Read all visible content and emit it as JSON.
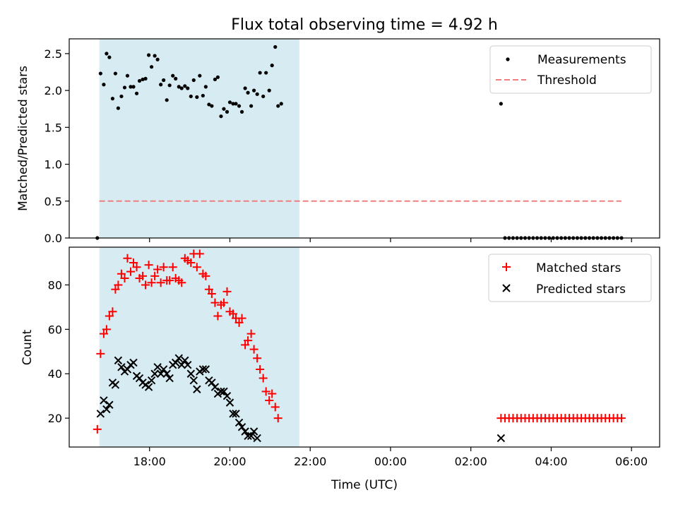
{
  "chart_data": [
    {
      "type": "scatter",
      "title": "Flux total observing time = 4.92 h",
      "xlabel": "",
      "ylabel": "Matched/Predicted stars",
      "xlim": [
        16.0,
        30.7
      ],
      "ylim": [
        0,
        2.7
      ],
      "x_ticks": [
        18,
        20,
        22,
        24,
        26,
        28,
        30
      ],
      "y_ticks": [
        {
          "v": 0.0,
          "label": "0.0"
        },
        {
          "v": 0.5,
          "label": "0.5"
        },
        {
          "v": 1.0,
          "label": "1.0"
        },
        {
          "v": 1.5,
          "label": "1.5"
        },
        {
          "v": 2.0,
          "label": "2.0"
        },
        {
          "v": 2.5,
          "label": "2.5"
        }
      ],
      "shaded_span": [
        16.75,
        21.73
      ],
      "legend_position": "top-right",
      "threshold": {
        "name": "Threshold",
        "value": 0.5,
        "x_range": [
          16.75,
          29.75
        ],
        "color": "#f08080"
      },
      "series": [
        {
          "name": "Measurements",
          "color": "#000000",
          "marker": "dot",
          "points": [
            [
              16.7,
              0.0
            ],
            [
              16.78,
              2.23
            ],
            [
              16.86,
              2.08
            ],
            [
              16.93,
              2.5
            ],
            [
              17.0,
              2.45
            ],
            [
              17.08,
              1.89
            ],
            [
              17.15,
              2.23
            ],
            [
              17.22,
              1.76
            ],
            [
              17.3,
              1.92
            ],
            [
              17.38,
              2.04
            ],
            [
              17.45,
              2.2
            ],
            [
              17.53,
              2.05
            ],
            [
              17.6,
              2.05
            ],
            [
              17.68,
              1.96
            ],
            [
              17.75,
              2.13
            ],
            [
              17.83,
              2.15
            ],
            [
              17.9,
              2.16
            ],
            [
              17.98,
              2.48
            ],
            [
              18.05,
              2.32
            ],
            [
              18.13,
              2.47
            ],
            [
              18.2,
              2.42
            ],
            [
              18.28,
              2.08
            ],
            [
              18.35,
              2.14
            ],
            [
              18.43,
              1.87
            ],
            [
              18.5,
              2.07
            ],
            [
              18.58,
              2.2
            ],
            [
              18.65,
              2.16
            ],
            [
              18.73,
              2.05
            ],
            [
              18.8,
              2.03
            ],
            [
              18.88,
              2.06
            ],
            [
              18.95,
              2.03
            ],
            [
              19.03,
              1.92
            ],
            [
              19.1,
              2.14
            ],
            [
              19.18,
              1.91
            ],
            [
              19.25,
              2.2
            ],
            [
              19.33,
              1.93
            ],
            [
              19.4,
              2.05
            ],
            [
              19.48,
              1.81
            ],
            [
              19.55,
              1.79
            ],
            [
              19.63,
              2.15
            ],
            [
              19.7,
              2.18
            ],
            [
              19.78,
              1.65
            ],
            [
              19.85,
              1.75
            ],
            [
              19.93,
              1.71
            ],
            [
              20.0,
              1.84
            ],
            [
              20.08,
              1.82
            ],
            [
              20.15,
              1.82
            ],
            [
              20.23,
              1.79
            ],
            [
              20.3,
              1.71
            ],
            [
              20.38,
              2.03
            ],
            [
              20.45,
              1.97
            ],
            [
              20.53,
              1.79
            ],
            [
              20.6,
              2.0
            ],
            [
              20.68,
              1.95
            ],
            [
              20.75,
              2.24
            ],
            [
              20.83,
              1.92
            ],
            [
              20.9,
              2.24
            ],
            [
              20.98,
              2.0
            ],
            [
              21.05,
              2.34
            ],
            [
              21.13,
              2.59
            ],
            [
              21.2,
              1.79
            ],
            [
              21.28,
              1.82
            ],
            [
              26.75,
              1.82
            ],
            [
              26.85,
              0
            ],
            [
              26.95,
              0
            ],
            [
              27.05,
              0
            ],
            [
              27.15,
              0
            ],
            [
              27.25,
              0
            ],
            [
              27.35,
              0
            ],
            [
              27.45,
              0
            ],
            [
              27.55,
              0
            ],
            [
              27.65,
              0
            ],
            [
              27.75,
              0
            ],
            [
              27.85,
              0
            ],
            [
              27.95,
              0
            ],
            [
              28.05,
              0
            ],
            [
              28.15,
              0
            ],
            [
              28.25,
              0
            ],
            [
              28.35,
              0
            ],
            [
              28.45,
              0
            ],
            [
              28.55,
              0
            ],
            [
              28.65,
              0
            ],
            [
              28.75,
              0
            ],
            [
              28.85,
              0
            ],
            [
              28.95,
              0
            ],
            [
              29.05,
              0
            ],
            [
              29.15,
              0
            ],
            [
              29.25,
              0
            ],
            [
              29.35,
              0
            ],
            [
              29.45,
              0
            ],
            [
              29.55,
              0
            ],
            [
              29.65,
              0
            ],
            [
              29.75,
              0
            ]
          ]
        }
      ]
    },
    {
      "type": "scatter",
      "title": "",
      "xlabel": "Time (UTC)",
      "ylabel": "Count",
      "xlim": [
        16.0,
        30.7
      ],
      "ylim": [
        7,
        97
      ],
      "x_ticks": [
        {
          "v": 18,
          "label": "18:00"
        },
        {
          "v": 20,
          "label": "20:00"
        },
        {
          "v": 22,
          "label": "22:00"
        },
        {
          "v": 24,
          "label": "00:00"
        },
        {
          "v": 26,
          "label": "02:00"
        },
        {
          "v": 28,
          "label": "04:00"
        },
        {
          "v": 30,
          "label": "06:00"
        }
      ],
      "y_ticks": [
        {
          "v": 20,
          "label": "20"
        },
        {
          "v": 40,
          "label": "40"
        },
        {
          "v": 60,
          "label": "60"
        },
        {
          "v": 80,
          "label": "80"
        }
      ],
      "shaded_span": [
        16.75,
        21.73
      ],
      "legend_position": "top-right",
      "series": [
        {
          "name": "Matched stars",
          "color": "#ff0000",
          "marker": "plus",
          "points": [
            [
              16.7,
              15
            ],
            [
              16.78,
              49
            ],
            [
              16.86,
              58
            ],
            [
              16.93,
              60
            ],
            [
              17.0,
              66
            ],
            [
              17.08,
              68
            ],
            [
              17.15,
              78
            ],
            [
              17.22,
              80
            ],
            [
              17.3,
              85
            ],
            [
              17.38,
              83
            ],
            [
              17.45,
              92
            ],
            [
              17.53,
              86
            ],
            [
              17.6,
              90
            ],
            [
              17.68,
              88
            ],
            [
              17.75,
              83
            ],
            [
              17.83,
              84
            ],
            [
              17.9,
              80
            ],
            [
              17.98,
              89
            ],
            [
              18.05,
              81
            ],
            [
              18.13,
              84
            ],
            [
              18.2,
              87
            ],
            [
              18.28,
              81
            ],
            [
              18.35,
              88
            ],
            [
              18.43,
              82
            ],
            [
              18.5,
              82
            ],
            [
              18.58,
              88
            ],
            [
              18.65,
              83
            ],
            [
              18.73,
              82
            ],
            [
              18.8,
              81
            ],
            [
              18.88,
              92
            ],
            [
              18.95,
              91
            ],
            [
              19.03,
              90
            ],
            [
              19.1,
              94
            ],
            [
              19.18,
              88
            ],
            [
              19.25,
              94
            ],
            [
              19.33,
              85
            ],
            [
              19.4,
              84
            ],
            [
              19.48,
              78
            ],
            [
              19.55,
              76
            ],
            [
              19.63,
              72
            ],
            [
              19.7,
              66
            ],
            [
              19.78,
              71
            ],
            [
              19.85,
              72
            ],
            [
              19.93,
              77
            ],
            [
              20.0,
              68
            ],
            [
              20.08,
              67
            ],
            [
              20.15,
              65
            ],
            [
              20.23,
              63
            ],
            [
              20.3,
              65
            ],
            [
              20.38,
              53
            ],
            [
              20.45,
              55
            ],
            [
              20.53,
              58
            ],
            [
              20.6,
              51
            ],
            [
              20.68,
              47
            ],
            [
              20.75,
              42
            ],
            [
              20.83,
              38
            ],
            [
              20.9,
              32
            ],
            [
              20.98,
              28
            ],
            [
              21.05,
              31
            ],
            [
              21.13,
              25
            ],
            [
              21.2,
              20
            ],
            [
              26.75,
              20
            ],
            [
              26.85,
              20
            ],
            [
              26.95,
              20
            ],
            [
              27.05,
              20
            ],
            [
              27.15,
              20
            ],
            [
              27.25,
              20
            ],
            [
              27.35,
              20
            ],
            [
              27.45,
              20
            ],
            [
              27.55,
              20
            ],
            [
              27.65,
              20
            ],
            [
              27.75,
              20
            ],
            [
              27.85,
              20
            ],
            [
              27.95,
              20
            ],
            [
              28.05,
              20
            ],
            [
              28.15,
              20
            ],
            [
              28.25,
              20
            ],
            [
              28.35,
              20
            ],
            [
              28.45,
              20
            ],
            [
              28.55,
              20
            ],
            [
              28.65,
              20
            ],
            [
              28.75,
              20
            ],
            [
              28.85,
              20
            ],
            [
              28.95,
              20
            ],
            [
              29.05,
              20
            ],
            [
              29.15,
              20
            ],
            [
              29.25,
              20
            ],
            [
              29.35,
              20
            ],
            [
              29.45,
              20
            ],
            [
              29.55,
              20
            ],
            [
              29.65,
              20
            ],
            [
              29.75,
              20
            ]
          ]
        },
        {
          "name": "Predicted stars",
          "color": "#000000",
          "marker": "x",
          "points": [
            [
              16.78,
              22
            ],
            [
              16.86,
              28
            ],
            [
              16.93,
              24
            ],
            [
              17.0,
              26
            ],
            [
              17.08,
              36
            ],
            [
              17.15,
              35
            ],
            [
              17.22,
              46
            ],
            [
              17.3,
              43
            ],
            [
              17.38,
              41
            ],
            [
              17.45,
              42
            ],
            [
              17.53,
              44
            ],
            [
              17.6,
              45
            ],
            [
              17.68,
              39
            ],
            [
              17.75,
              38
            ],
            [
              17.83,
              36
            ],
            [
              17.9,
              35
            ],
            [
              17.98,
              34
            ],
            [
              18.05,
              37
            ],
            [
              18.13,
              40
            ],
            [
              18.2,
              43
            ],
            [
              18.28,
              40
            ],
            [
              18.35,
              42
            ],
            [
              18.43,
              40
            ],
            [
              18.5,
              38
            ],
            [
              18.58,
              44
            ],
            [
              18.65,
              45
            ],
            [
              18.73,
              47
            ],
            [
              18.8,
              44
            ],
            [
              18.88,
              46
            ],
            [
              18.95,
              44
            ],
            [
              19.03,
              40
            ],
            [
              19.1,
              37
            ],
            [
              19.18,
              33
            ],
            [
              19.25,
              41
            ],
            [
              19.33,
              42
            ],
            [
              19.4,
              42
            ],
            [
              19.48,
              37
            ],
            [
              19.55,
              36
            ],
            [
              19.63,
              34
            ],
            [
              19.7,
              31
            ],
            [
              19.78,
              32
            ],
            [
              19.85,
              32
            ],
            [
              19.93,
              30
            ],
            [
              20.0,
              27
            ],
            [
              20.08,
              22
            ],
            [
              20.15,
              22
            ],
            [
              20.23,
              18
            ],
            [
              20.3,
              16
            ],
            [
              20.38,
              14
            ],
            [
              20.45,
              12
            ],
            [
              20.53,
              12
            ],
            [
              20.6,
              14
            ],
            [
              20.68,
              11
            ],
            [
              26.75,
              11
            ]
          ]
        }
      ]
    }
  ]
}
